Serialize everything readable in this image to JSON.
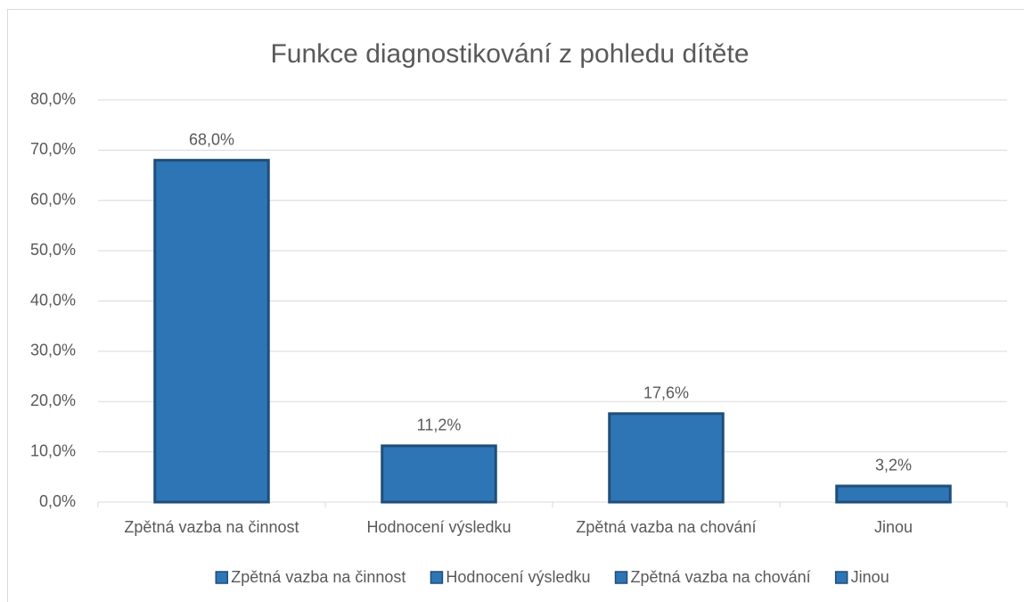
{
  "chart_data": {
    "type": "bar",
    "title": "Funkce diagnostikování z pohledu dítěte",
    "categories": [
      "Zpětná vazba na činnost",
      "Hodnocení výsledku",
      "Zpětná vazba na chování",
      "Jinou"
    ],
    "values": [
      68.0,
      11.2,
      17.6,
      3.2
    ],
    "value_labels": [
      "68,0%",
      "11,2%",
      "17,6%",
      "3,2%"
    ],
    "color": "#2e75b6",
    "edge_color": "#1f4e79",
    "ylim": [
      0,
      80
    ],
    "yticks": [
      {
        "value": 0,
        "label": "0,0%"
      },
      {
        "value": 10,
        "label": "10,0%"
      },
      {
        "value": 20,
        "label": "20,0%"
      },
      {
        "value": 30,
        "label": "30,0%"
      },
      {
        "value": 40,
        "label": "40,0%"
      },
      {
        "value": 50,
        "label": "50,0%"
      },
      {
        "value": 60,
        "label": "60,0%"
      },
      {
        "value": 70,
        "label": "70,0%"
      },
      {
        "value": 80,
        "label": "80,0%"
      }
    ],
    "grid": true,
    "legend": "bottom"
  }
}
